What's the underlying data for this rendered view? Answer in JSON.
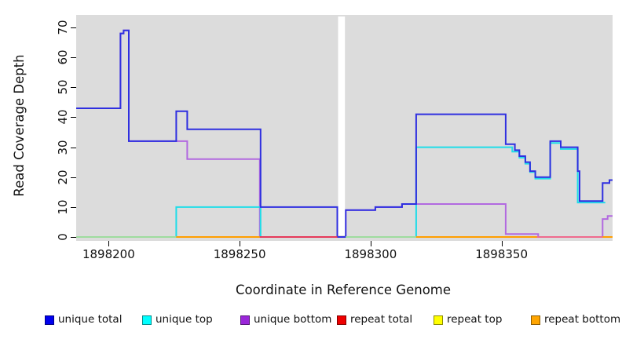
{
  "chart_data": {
    "type": "line",
    "subtype": "step-coverage-plot",
    "title": "",
    "xlabel": "Coordinate in Reference Genome",
    "ylabel": "Read Coverage Depth",
    "xlim": [
      1898187.6,
      1898392.4
    ],
    "ylim": [
      0,
      74
    ],
    "x_ticks": [
      1898200,
      1898250,
      1898300,
      1898350
    ],
    "y_ticks": [
      0,
      10,
      20,
      30,
      40,
      50,
      60,
      70
    ],
    "grid": false,
    "panel_bg": "#dcdcdc",
    "page_bg": "#ffffff",
    "legend_position": "bottom",
    "gap_band": {
      "from": 1898287.3,
      "to": 1898290.5,
      "color": "#ffffff"
    },
    "series": [
      {
        "key": "repeat_total",
        "name": "repeat total",
        "line_color": "#ee1111",
        "points": [
          [
            1898187.6,
            0
          ]
        ],
        "end": 1898392.4
      },
      {
        "key": "repeat_top",
        "name": "repeat top",
        "line_color": "#f2ef1d",
        "points": [
          [
            1898187.6,
            0
          ]
        ],
        "end": 1898392.4
      },
      {
        "key": "repeat_bottom",
        "name": "repeat bottom",
        "line_color": "#ff9e00",
        "points": [
          [
            1898187.6,
            0
          ]
        ],
        "end": 1898392.4
      },
      {
        "key": "unique_bottom",
        "name": "unique bottom",
        "line_color": "#b269e0",
        "points": [
          [
            1898187.6,
            43
          ],
          [
            1898204.5,
            68
          ],
          [
            1898205.7,
            69
          ],
          [
            1898207.7,
            32
          ],
          [
            1898230,
            26
          ],
          [
            1898257.7,
            0
          ],
          [
            1898290.5,
            9
          ],
          [
            1898301.8,
            10
          ],
          [
            1898312,
            11
          ],
          [
            1898351.6,
            1
          ],
          [
            1898364,
            0
          ],
          [
            1898388.6,
            6
          ],
          [
            1898390.5,
            7
          ]
        ],
        "end": 1898392.4
      },
      {
        "key": "unique_top",
        "name": "unique top",
        "line_color": "#1fdde8",
        "points": [
          [
            1898187.6,
            0
          ],
          [
            1898225.8,
            10
          ],
          [
            1898258,
            0
          ],
          [
            1898317.4,
            30
          ],
          [
            1898354.1,
            28.5
          ],
          [
            1898356.8,
            26.5
          ],
          [
            1898359.1,
            24.5
          ],
          [
            1898360.9,
            21.7
          ],
          [
            1898362.9,
            19.5
          ],
          [
            1898368.6,
            31.4
          ],
          [
            1898372.6,
            29.4
          ],
          [
            1898379.1,
            11.5
          ]
        ],
        "end": 1898389.6
      },
      {
        "key": "unique_total",
        "name": "unique total",
        "line_color": "#2f2fe0",
        "points": [
          [
            1898187.6,
            43
          ],
          [
            1898204.5,
            68
          ],
          [
            1898205.7,
            69
          ],
          [
            1898207.7,
            32
          ],
          [
            1898225.8,
            42
          ],
          [
            1898230,
            36
          ],
          [
            1898258,
            10
          ],
          [
            1898287.3,
            0
          ],
          [
            1898290.5,
            9
          ],
          [
            1898301.8,
            10
          ],
          [
            1898312,
            11
          ],
          [
            1898317.4,
            41
          ],
          [
            1898351.6,
            31
          ],
          [
            1898355.1,
            29
          ],
          [
            1898356.8,
            27
          ],
          [
            1898359.1,
            25
          ],
          [
            1898360.9,
            22
          ],
          [
            1898362.9,
            20
          ],
          [
            1898368.6,
            32
          ],
          [
            1898372.6,
            30
          ],
          [
            1898379.1,
            22
          ],
          [
            1898379.8,
            12
          ],
          [
            1898388.6,
            18
          ],
          [
            1898391.2,
            19
          ]
        ],
        "end": 1898392.4
      }
    ],
    "zero_line_segments": [
      {
        "from": 1898187.6,
        "to": 1898225.8,
        "color": "#9fdc9f"
      },
      {
        "from": 1898225.8,
        "to": 1898257.7,
        "color": "#ff9e00"
      },
      {
        "from": 1898257.7,
        "to": 1898287.3,
        "color": "#e63a5a"
      },
      {
        "from": 1898290.5,
        "to": 1898317.4,
        "color": "#9fdc9f"
      },
      {
        "from": 1898317.4,
        "to": 1898363.5,
        "color": "#ff9e00"
      },
      {
        "from": 1898363.5,
        "to": 1898388.6,
        "color": "#ef6a8e"
      },
      {
        "from": 1898388.6,
        "to": 1898392.4,
        "color": "#ff9e00"
      }
    ],
    "legend": [
      {
        "key": "unique_total",
        "label": "unique total",
        "color": "#0000ee"
      },
      {
        "key": "unique_top",
        "label": "unique top",
        "color": "#00ffff"
      },
      {
        "key": "unique_bottom",
        "label": "unique bottom",
        "color": "#9a26d9"
      },
      {
        "key": "repeat_total",
        "label": "repeat total",
        "color": "#ee0000"
      },
      {
        "key": "repeat_top",
        "label": "repeat top",
        "color": "#ffff00"
      },
      {
        "key": "repeat_bottom",
        "label": "repeat bottom",
        "color": "#ffa500"
      }
    ]
  }
}
